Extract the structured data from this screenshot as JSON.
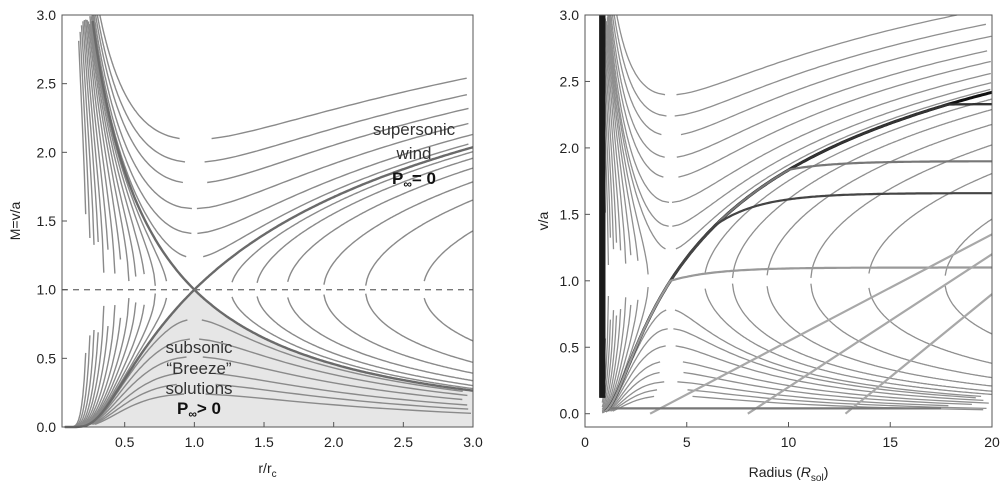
{
  "chart_data": [
    {
      "type": "line",
      "description_source": "left panel",
      "xlabel": "r/r_c",
      "xlabel_parts": {
        "base": "r/r",
        "sub": "c"
      },
      "ylabel": "M=v/a",
      "xlim": [
        0.05,
        3.0
      ],
      "ylim": [
        0.0,
        3.0
      ],
      "x_ticks": [
        "0.5",
        "1.0",
        "1.5",
        "2.0",
        "2.5",
        "3.0"
      ],
      "x_tick_values": [
        0.5,
        1.0,
        1.5,
        2.0,
        2.5,
        3.0
      ],
      "y_ticks": [
        "0.0",
        "0.5",
        "1.0",
        "1.5",
        "2.0",
        "2.5",
        "3.0"
      ],
      "y_tick_values": [
        0.0,
        0.5,
        1.0,
        1.5,
        2.0,
        2.5,
        3.0
      ],
      "sonic_line": 1.0,
      "critical_point": [
        1.0,
        1.0
      ],
      "annotations": {
        "supersonic": [
          "supersonic",
          "wind"
        ],
        "supersonic_p": "P",
        "supersonic_p_rest": "= 0",
        "subsonic": [
          "subsonic",
          "“Breeze”",
          "solutions"
        ],
        "subsonic_p": "P",
        "subsonic_p_rest": "> 0",
        "infinity": "∞"
      },
      "shaded_region": "subsonic breeze solutions",
      "colors": {
        "curve": "#8a8a8a",
        "critical": "#6a6a6a",
        "shade": "#e6e6e6",
        "dashed": "#777777"
      }
    },
    {
      "type": "line",
      "description_source": "right panel",
      "xlabel": "Radius (R_sol)",
      "xlabel_parts": {
        "pre": "Radius (",
        "italic": "R",
        "sub": "sol",
        "post": ")"
      },
      "ylabel": "v/a",
      "xlim": [
        0,
        20
      ],
      "ylim": [
        -0.1,
        3.0
      ],
      "x_ticks": [
        "0",
        "5",
        "10",
        "15",
        "20"
      ],
      "x_tick_values": [
        0,
        5,
        10,
        15,
        20
      ],
      "y_ticks": [
        "0.0",
        "0.5",
        "1.0",
        "1.5",
        "2.0",
        "2.5",
        "3.0"
      ],
      "y_tick_values": [
        0.0,
        0.5,
        1.0,
        1.5,
        2.0,
        2.5,
        3.0
      ],
      "series": [
        {
          "values_at_r20": 2.57
        },
        {
          "values_at_r20": 2.33
        },
        {
          "values_at_r20": 1.9
        },
        {
          "values_at_r20": 1.66
        },
        {
          "values_at_r20": 1.1
        }
      ],
      "colors": {
        "curve": "#8f8f8f",
        "thick": "#111111",
        "mid": "#555555",
        "light": "#a8a8a8"
      }
    }
  ]
}
